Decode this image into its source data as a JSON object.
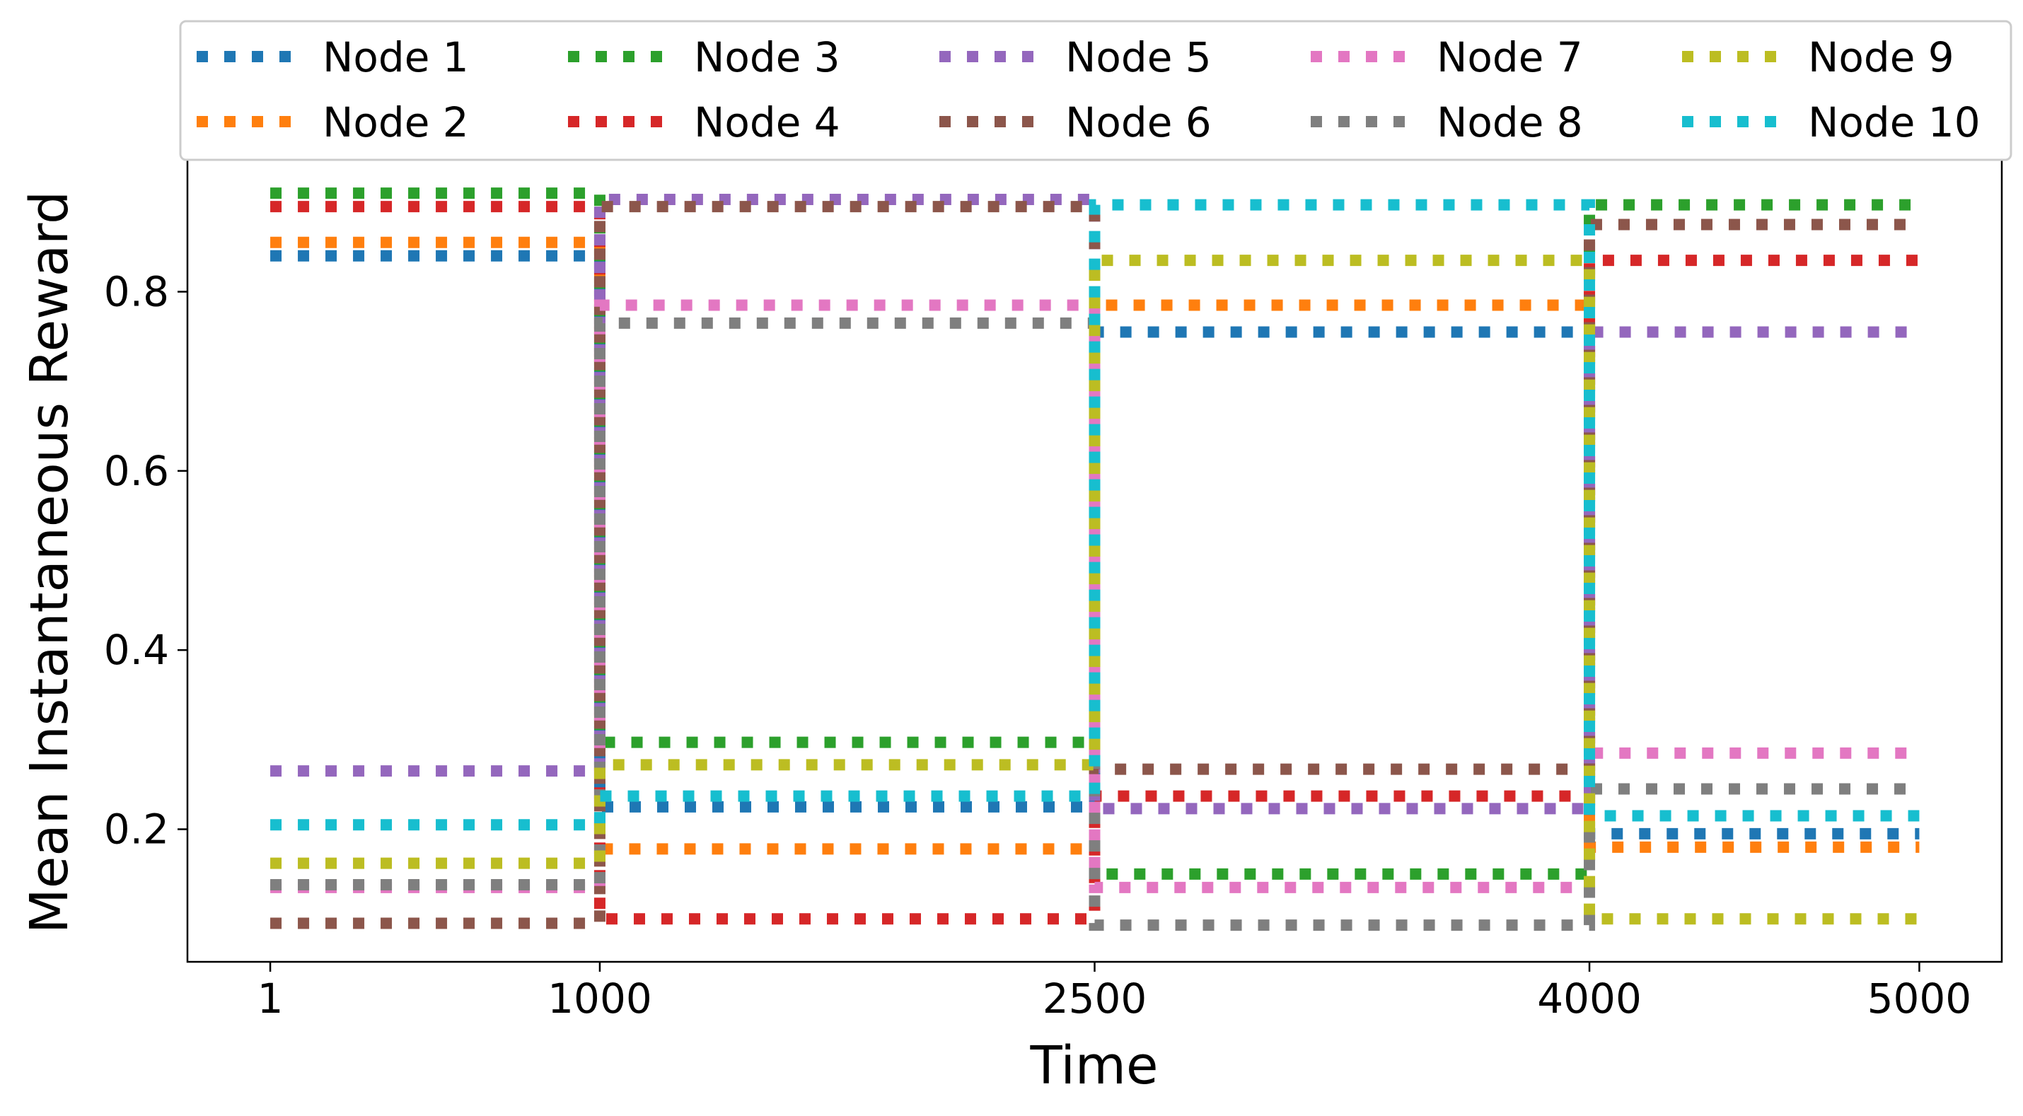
{
  "chart_data": {
    "type": "line",
    "title": "",
    "xlabel": "Time",
    "ylabel": "Mean Instantaneous Reward",
    "x_ticks": [
      1,
      1000,
      2500,
      4000,
      5000
    ],
    "x_tick_labels": [
      "1",
      "1000",
      "2500",
      "4000",
      "5000"
    ],
    "y_ticks": [
      0.2,
      0.4,
      0.6,
      0.8
    ],
    "y_tick_labels": [
      "0.2",
      "0.4",
      "0.6",
      "0.8"
    ],
    "xlim": [
      -250,
      5250
    ],
    "ylim": [
      0.052,
      0.948
    ],
    "grid": false,
    "legend_position": "top",
    "line_style": "dotted",
    "segments": [
      [
        1,
        1000
      ],
      [
        1000,
        2500
      ],
      [
        2500,
        4000
      ],
      [
        4000,
        5000
      ]
    ],
    "series": [
      {
        "name": "Node 1",
        "color": "#1f77b4",
        "values": [
          0.84,
          0.225,
          0.755,
          0.195
        ]
      },
      {
        "name": "Node 2",
        "color": "#ff7f0e",
        "values": [
          0.855,
          0.178,
          0.785,
          0.18
        ]
      },
      {
        "name": "Node 3",
        "color": "#2ca02c",
        "values": [
          0.91,
          0.297,
          0.15,
          0.897
        ]
      },
      {
        "name": "Node 4",
        "color": "#d62728",
        "values": [
          0.895,
          0.1,
          0.237,
          0.835
        ]
      },
      {
        "name": "Node 5",
        "color": "#9467bd",
        "values": [
          0.265,
          0.903,
          0.223,
          0.755
        ]
      },
      {
        "name": "Node 6",
        "color": "#8c564b",
        "values": [
          0.095,
          0.895,
          0.267,
          0.875
        ]
      },
      {
        "name": "Node 7",
        "color": "#e377c2",
        "values": [
          0.135,
          0.785,
          0.135,
          0.285
        ]
      },
      {
        "name": "Node 8",
        "color": "#7f7f7f",
        "values": [
          0.138,
          0.765,
          0.093,
          0.245
        ]
      },
      {
        "name": "Node 9",
        "color": "#bcbd22",
        "values": [
          0.162,
          0.272,
          0.835,
          0.1
        ]
      },
      {
        "name": "Node 10",
        "color": "#17becf",
        "values": [
          0.205,
          0.237,
          0.897,
          0.215
        ]
      }
    ]
  }
}
